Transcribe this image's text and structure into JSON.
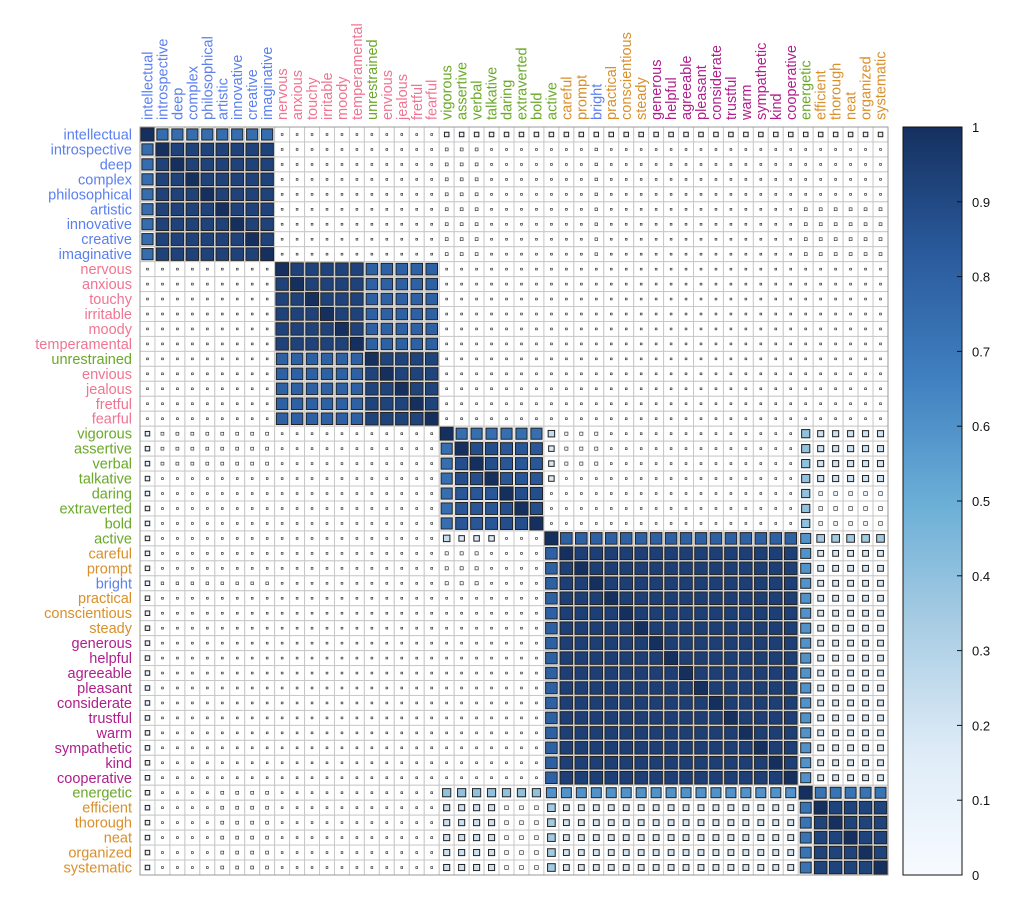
{
  "chart_data": {
    "type": "heatmap",
    "subtype": "correlation-matrix-squares",
    "title": "",
    "group_colors": {
      "blue": "#5b7ff0",
      "pink": "#f07592",
      "green": "#6aa928",
      "orange": "#d98f2b",
      "purple": "#b01e8c"
    },
    "variables": [
      {
        "label": "intellectual",
        "group": "blue"
      },
      {
        "label": "introspective",
        "group": "blue"
      },
      {
        "label": "deep",
        "group": "blue"
      },
      {
        "label": "complex",
        "group": "blue"
      },
      {
        "label": "philosophical",
        "group": "blue"
      },
      {
        "label": "artistic",
        "group": "blue"
      },
      {
        "label": "innovative",
        "group": "blue"
      },
      {
        "label": "creative",
        "group": "blue"
      },
      {
        "label": "imaginative",
        "group": "blue"
      },
      {
        "label": "nervous",
        "group": "pink"
      },
      {
        "label": "anxious",
        "group": "pink"
      },
      {
        "label": "touchy",
        "group": "pink"
      },
      {
        "label": "irritable",
        "group": "pink"
      },
      {
        "label": "moody",
        "group": "pink"
      },
      {
        "label": "temperamental",
        "group": "pink"
      },
      {
        "label": "unrestrained",
        "group": "green"
      },
      {
        "label": "envious",
        "group": "pink"
      },
      {
        "label": "jealous",
        "group": "pink"
      },
      {
        "label": "fretful",
        "group": "pink"
      },
      {
        "label": "fearful",
        "group": "pink"
      },
      {
        "label": "vigorous",
        "group": "green"
      },
      {
        "label": "assertive",
        "group": "green"
      },
      {
        "label": "verbal",
        "group": "green"
      },
      {
        "label": "talkative",
        "group": "green"
      },
      {
        "label": "daring",
        "group": "green"
      },
      {
        "label": "extraverted",
        "group": "green"
      },
      {
        "label": "bold",
        "group": "green"
      },
      {
        "label": "active",
        "group": "green"
      },
      {
        "label": "careful",
        "group": "orange"
      },
      {
        "label": "prompt",
        "group": "orange"
      },
      {
        "label": "bright",
        "group": "blue"
      },
      {
        "label": "practical",
        "group": "orange"
      },
      {
        "label": "conscientious",
        "group": "orange"
      },
      {
        "label": "steady",
        "group": "orange"
      },
      {
        "label": "generous",
        "group": "purple"
      },
      {
        "label": "helpful",
        "group": "purple"
      },
      {
        "label": "agreeable",
        "group": "purple"
      },
      {
        "label": "pleasant",
        "group": "purple"
      },
      {
        "label": "considerate",
        "group": "purple"
      },
      {
        "label": "trustful",
        "group": "purple"
      },
      {
        "label": "warm",
        "group": "purple"
      },
      {
        "label": "sympathetic",
        "group": "purple"
      },
      {
        "label": "kind",
        "group": "purple"
      },
      {
        "label": "cooperative",
        "group": "purple"
      },
      {
        "label": "energetic",
        "group": "green"
      },
      {
        "label": "efficient",
        "group": "orange"
      },
      {
        "label": "thorough",
        "group": "orange"
      },
      {
        "label": "neat",
        "group": "orange"
      },
      {
        "label": "organized",
        "group": "orange"
      },
      {
        "label": "systematic",
        "group": "orange"
      }
    ],
    "default_value": 0.02,
    "blocks": [
      {
        "rows": [
          0,
          8
        ],
        "cols": [
          0,
          8
        ],
        "value": 0.93
      },
      {
        "rows": [
          0,
          0
        ],
        "cols": [
          1,
          8
        ],
        "value": 0.75
      },
      {
        "rows": [
          9,
          14
        ],
        "cols": [
          9,
          14
        ],
        "value": 0.93
      },
      {
        "rows": [
          15,
          19
        ],
        "cols": [
          15,
          19
        ],
        "value": 0.92
      },
      {
        "rows": [
          9,
          14
        ],
        "cols": [
          15,
          19
        ],
        "value": 0.8
      },
      {
        "rows": [
          20,
          26
        ],
        "cols": [
          20,
          26
        ],
        "value": 0.88
      },
      {
        "rows": [
          20,
          20
        ],
        "cols": [
          21,
          26
        ],
        "value": 0.74
      },
      {
        "rows": [
          21,
          23
        ],
        "cols": [
          24,
          26
        ],
        "value": 0.85
      },
      {
        "rows": [
          27,
          43
        ],
        "cols": [
          27,
          43
        ],
        "value": 0.94
      },
      {
        "rows": [
          27,
          27
        ],
        "cols": [
          28,
          43
        ],
        "value": 0.8
      },
      {
        "rows": [
          44,
          49
        ],
        "cols": [
          44,
          49
        ],
        "value": 0.92
      },
      {
        "rows": [
          44,
          44
        ],
        "cols": [
          45,
          49
        ],
        "value": 0.72
      },
      {
        "rows": [
          27,
          43
        ],
        "cols": [
          44,
          44
        ],
        "value": 0.6
      },
      {
        "rows": [
          27,
          27
        ],
        "cols": [
          45,
          49
        ],
        "value": 0.35
      },
      {
        "rows": [
          28,
          43
        ],
        "cols": [
          45,
          49
        ],
        "value": 0.2
      },
      {
        "rows": [
          20,
          26
        ],
        "cols": [
          44,
          44
        ],
        "value": 0.4
      },
      {
        "rows": [
          20,
          23
        ],
        "cols": [
          45,
          49
        ],
        "value": 0.22
      },
      {
        "rows": [
          24,
          26
        ],
        "cols": [
          45,
          49
        ],
        "value": 0.08
      },
      {
        "rows": [
          20,
          20
        ],
        "cols": [
          27,
          27
        ],
        "value": 0.25
      },
      {
        "rows": [
          21,
          23
        ],
        "cols": [
          27,
          27
        ],
        "value": 0.18
      },
      {
        "rows": [
          20,
          22
        ],
        "cols": [
          28,
          30
        ],
        "value": 0.06
      },
      {
        "rows": [
          0,
          0
        ],
        "cols": [
          20,
          49
        ],
        "value": 0.12
      },
      {
        "rows": [
          20,
          22
        ],
        "cols": [
          1,
          8
        ],
        "value": 0.05
      },
      {
        "rows": [
          44,
          49
        ],
        "cols": [
          5,
          8
        ],
        "value": 0.05
      },
      {
        "rows": [
          30,
          30
        ],
        "cols": [
          1,
          8
        ],
        "value": 0.04
      }
    ],
    "colorbar": {
      "range": [
        0,
        1
      ],
      "ticks": [
        "0",
        "0.1",
        "0.2",
        "0.3",
        "0.4",
        "0.5",
        "0.6",
        "0.7",
        "0.8",
        "0.9",
        "1"
      ],
      "colors": [
        "#f7fbff",
        "#deebf7",
        "#a9cde4",
        "#6aaed6",
        "#3f7fc0",
        "#2a5a9c",
        "#15305f"
      ]
    }
  }
}
